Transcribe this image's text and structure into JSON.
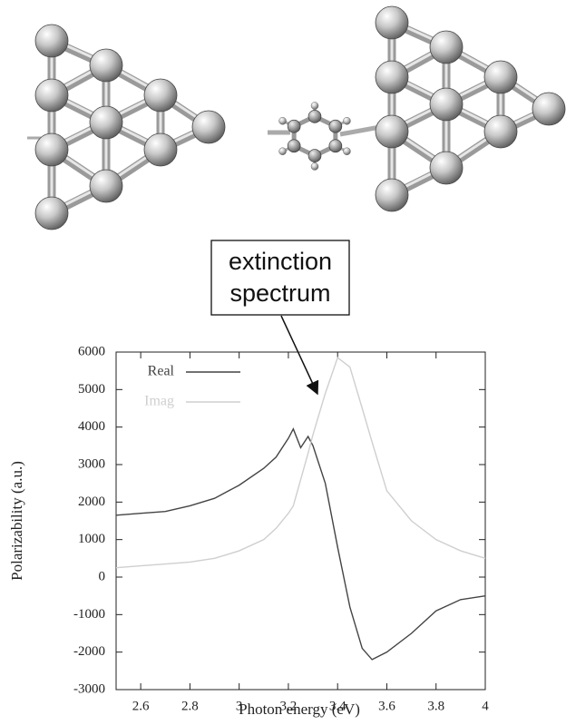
{
  "chart_data": {
    "type": "line",
    "annotation_lines": [
      "extinction",
      "spectrum"
    ],
    "x_label": "Photon energy (eV)",
    "y_label": "Polarizability (a.u.)",
    "x": [
      2.5,
      2.6,
      2.7,
      2.8,
      2.9,
      3.0,
      3.1,
      3.15,
      3.2,
      3.22,
      3.25,
      3.28,
      3.3,
      3.35,
      3.4,
      3.45,
      3.5,
      3.54,
      3.6,
      3.7,
      3.8,
      3.9,
      4.0
    ],
    "series": [
      {
        "name": "Real",
        "color": "#444444",
        "values": [
          1650,
          1700,
          1750,
          1900,
          2100,
          2450,
          2900,
          3200,
          3700,
          3950,
          3450,
          3750,
          3500,
          2500,
          800,
          -800,
          -1900,
          -2200,
          -2000,
          -1500,
          -900,
          -600,
          -500
        ]
      },
      {
        "name": "Imag",
        "color": "#cfcfcf",
        "values": [
          250,
          300,
          350,
          400,
          500,
          700,
          1000,
          1300,
          1700,
          1900,
          2600,
          3300,
          3800,
          4900,
          5850,
          5600,
          4500,
          3600,
          2300,
          1500,
          1000,
          700,
          500
        ]
      }
    ],
    "xlim": [
      2.5,
      4
    ],
    "xticks": [
      2.6,
      2.8,
      3,
      3.2,
      3.4,
      3.6,
      3.8,
      4
    ],
    "ylim": [
      -3000,
      6000
    ],
    "yticks": [
      -3000,
      -2000,
      -1000,
      0,
      1000,
      2000,
      3000,
      4000,
      5000,
      6000
    ],
    "grid": false,
    "legend": "upper-left"
  }
}
